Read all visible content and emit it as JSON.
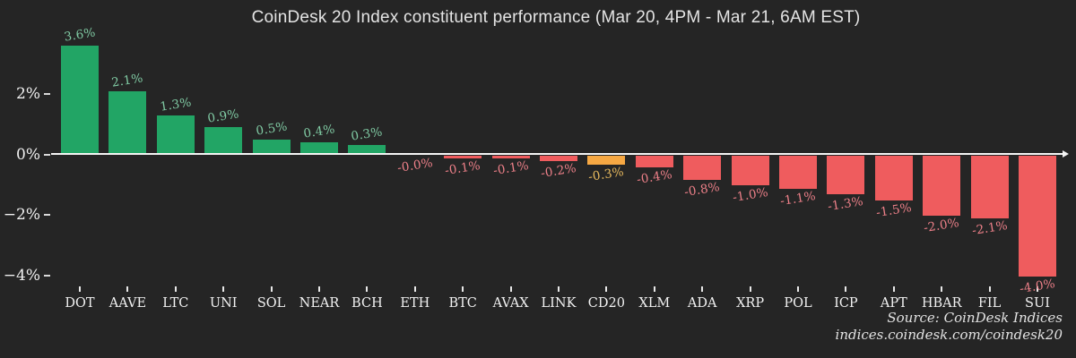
{
  "title": "CoinDesk 20 Index constituent performance (Mar 20, 4PM - Mar 21, 6AM EST)",
  "source": {
    "line1": "Source: CoinDesk Indices",
    "line2": "indices.coindesk.com/coindesk20"
  },
  "colors": {
    "background": "#252525",
    "positive_bar": "#22a565",
    "negative_bar": "#ef5c5e",
    "highlight_bar": "#f6a843",
    "positive_label": "#80cba4",
    "negative_label": "#ee8089",
    "highlight_label": "#e9bb5e",
    "axis_text": "#f0f0f0",
    "zero_line": "#f5f5f5",
    "title_text": "#e4e4e4"
  },
  "chart_data": {
    "type": "bar",
    "title": "CoinDesk 20 Index constituent performance (Mar 20, 4PM - Mar 21, 6AM EST)",
    "categories": [
      "DOT",
      "AAVE",
      "LTC",
      "UNI",
      "SOL",
      "NEAR",
      "BCH",
      "ETH",
      "BTC",
      "AVAX",
      "LINK",
      "CD20",
      "XLM",
      "ADA",
      "XRP",
      "POL",
      "ICP",
      "APT",
      "HBAR",
      "FIL",
      "SUI"
    ],
    "values": [
      3.6,
      2.1,
      1.3,
      0.9,
      0.5,
      0.4,
      0.3,
      -0.0,
      -0.1,
      -0.1,
      -0.2,
      -0.3,
      -0.4,
      -0.8,
      -1.0,
      -1.1,
      -1.3,
      -1.5,
      -2.0,
      -2.1,
      -4.0
    ],
    "data_labels": [
      "3.6%",
      "2.1%",
      "1.3%",
      "0.9%",
      "0.5%",
      "0.4%",
      "0.3%",
      "-0.0%",
      "-0.1%",
      "-0.1%",
      "-0.2%",
      "-0.3%",
      "-0.4%",
      "-0.8%",
      "-1.0%",
      "-1.1%",
      "-1.3%",
      "-1.5%",
      "-2.0%",
      "-2.1%",
      "-4.0%"
    ],
    "highlight_category": "CD20",
    "ylabel": "",
    "xlabel": "",
    "ylim": [
      -4.6,
      4.0
    ],
    "yticks": [
      {
        "value": 2,
        "label": "2%"
      },
      {
        "value": 0,
        "label": "0%"
      },
      {
        "value": -2,
        "label": "−2%"
      },
      {
        "value": -4,
        "label": "−4%"
      }
    ],
    "grid": false,
    "legend": "none"
  }
}
